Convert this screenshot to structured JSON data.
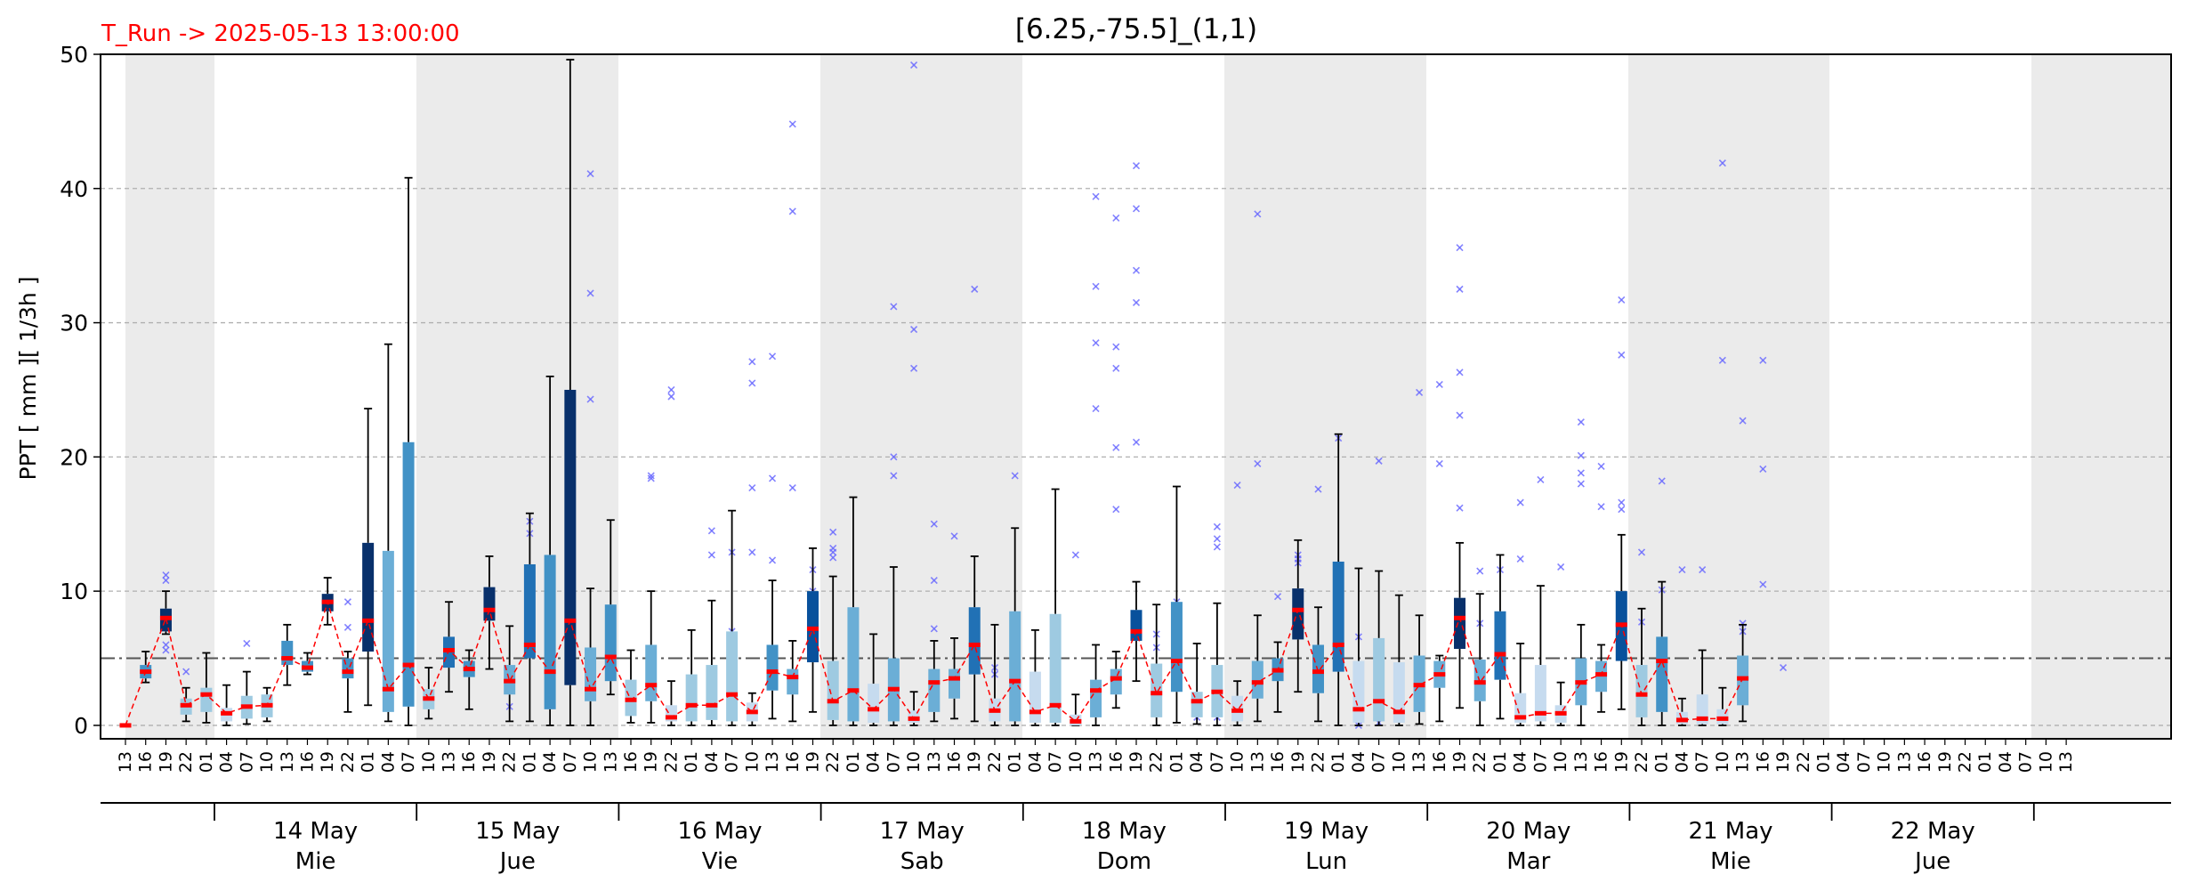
{
  "header": {
    "run_label": "T_Run -> 2025-05-13  13:00:00",
    "title": "[6.25,-75.5]_(1,1)",
    "run_color": "#ff0000"
  },
  "chart_data": {
    "type": "box",
    "ylabel": "PPT  [ mm ][ 1/3h ]",
    "ylim": [
      -1,
      50
    ],
    "yticks": [
      0,
      10,
      20,
      30,
      40,
      50
    ],
    "grid": true,
    "threshold": 5,
    "x_hours": [
      "13",
      "16",
      "19",
      "22",
      "01",
      "04",
      "07",
      "10",
      "13",
      "16",
      "19",
      "22",
      "01",
      "04",
      "07",
      "10",
      "13",
      "16",
      "19",
      "22",
      "01",
      "04",
      "07",
      "10",
      "13",
      "16",
      "19",
      "22",
      "01",
      "04",
      "07",
      "10",
      "13",
      "16",
      "19",
      "22",
      "01",
      "04",
      "07",
      "10",
      "13",
      "16",
      "19",
      "22",
      "01",
      "04",
      "07",
      "10",
      "13",
      "16",
      "19",
      "22",
      "01",
      "04",
      "07",
      "10",
      "13",
      "16",
      "19",
      "22",
      "01",
      "04",
      "07",
      "10",
      "13",
      "16",
      "19",
      "22",
      "01",
      "04",
      "07",
      "10",
      "13",
      "16",
      "19",
      "22",
      "01",
      "04",
      "07",
      "10",
      "13",
      "16",
      "19",
      "22",
      "01",
      "04",
      "07",
      "10",
      "13",
      "16",
      "19",
      "22",
      "01",
      "04",
      "07",
      "10",
      "13"
    ],
    "day_labels": [
      {
        "date": "14 May",
        "weekday": "Mie"
      },
      {
        "date": "15 May",
        "weekday": "Jue"
      },
      {
        "date": "16 May",
        "weekday": "Vie"
      },
      {
        "date": "17 May",
        "weekday": "Sab"
      },
      {
        "date": "18 May",
        "weekday": "Dom"
      },
      {
        "date": "19 May",
        "weekday": "Lun"
      },
      {
        "date": "20 May",
        "weekday": "Mar"
      },
      {
        "date": "21 May",
        "weekday": "Mie"
      },
      {
        "date": "22 May",
        "weekday": "Jue"
      }
    ],
    "median_series": [
      0,
      4,
      8,
      1.5,
      2.3,
      0.9,
      1.4,
      1.5,
      5,
      4.3,
      9.2,
      4,
      7.8,
      2.7,
      4.5,
      2,
      5.6,
      4.2,
      8.6,
      3.3,
      6,
      4,
      7.8,
      2.7,
      5.1,
      1.9,
      3,
      0.6,
      1.5,
      1.5,
      2.3,
      1,
      4,
      3.6,
      7.2,
      1.8,
      2.6,
      1.2,
      2.7,
      0.5,
      3.2,
      3.5,
      6,
      1.1,
      3.3,
      1,
      1.5,
      0.3,
      2.6,
      3.5,
      7,
      2.4,
      4.8,
      1.8,
      2.5,
      1.1,
      3.2,
      4.1,
      8.6,
      4,
      6,
      1.2,
      1.8,
      1,
      3,
      3.8,
      8,
      3.2,
      5.3,
      0.6,
      0.9,
      0.9,
      3.2,
      3.8,
      7.5,
      2.3,
      4.8,
      0.4,
      0.5,
      0.5,
      3.5
    ],
    "boxes": [
      {
        "q1": 0,
        "q3": 0,
        "lo": 0,
        "hi": 0,
        "med": 0
      },
      {
        "q1": 3.5,
        "q3": 4.5,
        "lo": 3.2,
        "hi": 5.5,
        "med": 4
      },
      {
        "q1": 7,
        "q3": 8.7,
        "lo": 6.8,
        "hi": 10,
        "med": 8
      },
      {
        "q1": 0.8,
        "q3": 2,
        "lo": 0.3,
        "hi": 2.8,
        "med": 1.5
      },
      {
        "q1": 1,
        "q3": 2.8,
        "lo": 0.2,
        "hi": 5.4,
        "med": 2.3
      },
      {
        "q1": 0.3,
        "q3": 1.3,
        "lo": 0,
        "hi": 3,
        "med": 0.9
      },
      {
        "q1": 0.5,
        "q3": 2.2,
        "lo": 0.1,
        "hi": 4,
        "med": 1.4
      },
      {
        "q1": 0.6,
        "q3": 2.3,
        "lo": 0.3,
        "hi": 2.8,
        "med": 1.5
      },
      {
        "q1": 4.5,
        "q3": 6.3,
        "lo": 3,
        "hi": 7.5,
        "med": 5
      },
      {
        "q1": 4,
        "q3": 4.8,
        "lo": 3.8,
        "hi": 5.4,
        "med": 4.3
      },
      {
        "q1": 8.5,
        "q3": 9.8,
        "lo": 7.5,
        "hi": 11,
        "med": 9.2
      },
      {
        "q1": 3.5,
        "q3": 5,
        "lo": 1,
        "hi": 5.5,
        "med": 4
      },
      {
        "q1": 5.5,
        "q3": 13.6,
        "lo": 1.5,
        "hi": 23.6,
        "med": 7.8
      },
      {
        "q1": 1,
        "q3": 13,
        "lo": 0.3,
        "hi": 28.4,
        "med": 2.7
      },
      {
        "q1": 1.4,
        "q3": 21.1,
        "lo": 0,
        "hi": 40.8,
        "med": 4.5
      },
      {
        "q1": 1.2,
        "q3": 2.7,
        "lo": 0.5,
        "hi": 4.3,
        "med": 2
      },
      {
        "q1": 4.3,
        "q3": 6.6,
        "lo": 2.5,
        "hi": 9.2,
        "med": 5.6
      },
      {
        "q1": 3.6,
        "q3": 4.8,
        "lo": 1.2,
        "hi": 5.6,
        "med": 4.2
      },
      {
        "q1": 7.8,
        "q3": 10.3,
        "lo": 4.2,
        "hi": 12.6,
        "med": 8.6
      },
      {
        "q1": 2.3,
        "q3": 4.5,
        "lo": 0.3,
        "hi": 7.4,
        "med": 3.3
      },
      {
        "q1": 5,
        "q3": 12,
        "lo": 0.3,
        "hi": 15.8,
        "med": 6
      },
      {
        "q1": 1.2,
        "q3": 12.7,
        "lo": 0,
        "hi": 26,
        "med": 4
      },
      {
        "q1": 3,
        "q3": 25,
        "lo": 0,
        "hi": 49.6,
        "med": 7.8
      },
      {
        "q1": 1.8,
        "q3": 5.8,
        "lo": 0,
        "hi": 10.2,
        "med": 2.7
      },
      {
        "q1": 3.3,
        "q3": 9,
        "lo": 2.3,
        "hi": 15.3,
        "med": 5.1
      },
      {
        "q1": 0.7,
        "q3": 3.4,
        "lo": 0.2,
        "hi": 5.6,
        "med": 1.9
      },
      {
        "q1": 1.8,
        "q3": 6,
        "lo": 0.2,
        "hi": 10,
        "med": 3
      },
      {
        "q1": 0.3,
        "q3": 1.5,
        "lo": 0,
        "hi": 3.3,
        "med": 0.6
      },
      {
        "q1": 0.3,
        "q3": 3.8,
        "lo": 0,
        "hi": 7.1,
        "med": 1.5
      },
      {
        "q1": 0.4,
        "q3": 4.5,
        "lo": 0,
        "hi": 9.3,
        "med": 1.5
      },
      {
        "q1": 0.3,
        "q3": 7,
        "lo": 0,
        "hi": 16,
        "med": 2.3
      },
      {
        "q1": 0.3,
        "q3": 1.7,
        "lo": 0,
        "hi": 2.4,
        "med": 1
      },
      {
        "q1": 2.6,
        "q3": 6,
        "lo": 0.5,
        "hi": 10.8,
        "med": 4
      },
      {
        "q1": 2.3,
        "q3": 4.2,
        "lo": 0.3,
        "hi": 6.3,
        "med": 3.6
      },
      {
        "q1": 4.7,
        "q3": 10,
        "lo": 1,
        "hi": 13.2,
        "med": 7.2
      },
      {
        "q1": 0.4,
        "q3": 4.8,
        "lo": 0,
        "hi": 11.1,
        "med": 1.8
      },
      {
        "q1": 0.3,
        "q3": 8.8,
        "lo": 0,
        "hi": 17,
        "med": 2.6
      },
      {
        "q1": 0.2,
        "q3": 3.1,
        "lo": 0,
        "hi": 6.8,
        "med": 1.2
      },
      {
        "q1": 0.3,
        "q3": 5,
        "lo": 0,
        "hi": 11.8,
        "med": 2.7
      },
      {
        "q1": 0.2,
        "q3": 1.1,
        "lo": 0,
        "hi": 2.5,
        "med": 0.5
      },
      {
        "q1": 1,
        "q3": 4.2,
        "lo": 0.3,
        "hi": 6.3,
        "med": 3.2
      },
      {
        "q1": 2,
        "q3": 4.2,
        "lo": 0.5,
        "hi": 6.5,
        "med": 3.5
      },
      {
        "q1": 3.8,
        "q3": 8.8,
        "lo": 0.3,
        "hi": 12.6,
        "med": 6
      },
      {
        "q1": 0.3,
        "q3": 2,
        "lo": 0,
        "hi": 7.5,
        "med": 1.1
      },
      {
        "q1": 0.3,
        "q3": 8.5,
        "lo": 0,
        "hi": 14.7,
        "med": 3.3
      },
      {
        "q1": 0.2,
        "q3": 4,
        "lo": 0,
        "hi": 7.1,
        "med": 1
      },
      {
        "q1": 0.2,
        "q3": 8.3,
        "lo": 0,
        "hi": 17.6,
        "med": 1.5
      },
      {
        "q1": 0,
        "q3": 0.8,
        "lo": 0,
        "hi": 2.3,
        "med": 0.3
      },
      {
        "q1": 0.6,
        "q3": 3.4,
        "lo": 0,
        "hi": 6,
        "med": 2.6
      },
      {
        "q1": 2.3,
        "q3": 4.2,
        "lo": 1.3,
        "hi": 5.5,
        "med": 3.5
      },
      {
        "q1": 6.3,
        "q3": 8.6,
        "lo": 3.3,
        "hi": 10.7,
        "med": 7
      },
      {
        "q1": 0.6,
        "q3": 4.6,
        "lo": 0,
        "hi": 9,
        "med": 2.4
      },
      {
        "q1": 2.5,
        "q3": 9.2,
        "lo": 0.2,
        "hi": 17.8,
        "med": 4.8
      },
      {
        "q1": 0.6,
        "q3": 2.5,
        "lo": 0.1,
        "hi": 6.1,
        "med": 1.8
      },
      {
        "q1": 0.6,
        "q3": 4.5,
        "lo": 0,
        "hi": 9.1,
        "med": 2.5
      },
      {
        "q1": 0.3,
        "q3": 2.2,
        "lo": 0,
        "hi": 3.3,
        "med": 1.1
      },
      {
        "q1": 2,
        "q3": 4.8,
        "lo": 0.3,
        "hi": 8.2,
        "med": 3.2
      },
      {
        "q1": 3.3,
        "q3": 5,
        "lo": 1,
        "hi": 6.2,
        "med": 4.1
      },
      {
        "q1": 6.4,
        "q3": 10.2,
        "lo": 2.5,
        "hi": 13.8,
        "med": 8.6
      },
      {
        "q1": 2.4,
        "q3": 6,
        "lo": 0.3,
        "hi": 8.8,
        "med": 4
      },
      {
        "q1": 4,
        "q3": 12.2,
        "lo": 0,
        "hi": 21.7,
        "med": 6
      },
      {
        "q1": 0.2,
        "q3": 4.8,
        "lo": 0,
        "hi": 11.7,
        "med": 1.2
      },
      {
        "q1": 0.3,
        "q3": 6.5,
        "lo": 0,
        "hi": 11.5,
        "med": 1.8
      },
      {
        "q1": 0.2,
        "q3": 4.7,
        "lo": 0,
        "hi": 9.7,
        "med": 1
      },
      {
        "q1": 1,
        "q3": 5.2,
        "lo": 0.1,
        "hi": 8.2,
        "med": 3
      },
      {
        "q1": 2.8,
        "q3": 4.8,
        "lo": 0.3,
        "hi": 5.2,
        "med": 3.8
      },
      {
        "q1": 5.7,
        "q3": 9.5,
        "lo": 1.3,
        "hi": 13.6,
        "med": 8
      },
      {
        "q1": 1.8,
        "q3": 4.9,
        "lo": 0,
        "hi": 9.8,
        "med": 3.2
      },
      {
        "q1": 3.4,
        "q3": 8.5,
        "lo": 0.5,
        "hi": 12.7,
        "med": 5.3
      },
      {
        "q1": 0.2,
        "q3": 2.4,
        "lo": 0,
        "hi": 6.1,
        "med": 0.6
      },
      {
        "q1": 0.3,
        "q3": 4.5,
        "lo": 0,
        "hi": 10.4,
        "med": 0.9
      },
      {
        "q1": 0.2,
        "q3": 1.5,
        "lo": 0,
        "hi": 3.2,
        "med": 0.9
      },
      {
        "q1": 1.5,
        "q3": 5,
        "lo": 0,
        "hi": 7.5,
        "med": 3.2
      },
      {
        "q1": 2.5,
        "q3": 4.8,
        "lo": 1,
        "hi": 6,
        "med": 3.8
      },
      {
        "q1": 4.8,
        "q3": 10,
        "lo": 1.2,
        "hi": 14.2,
        "med": 7.5
      },
      {
        "q1": 0.6,
        "q3": 4.5,
        "lo": 0,
        "hi": 8.7,
        "med": 2.3
      },
      {
        "q1": 1,
        "q3": 6.6,
        "lo": 0,
        "hi": 10.7,
        "med": 4.8
      },
      {
        "q1": 0.1,
        "q3": 1,
        "lo": 0,
        "hi": 2,
        "med": 0.4
      },
      {
        "q1": 0.1,
        "q3": 2.3,
        "lo": 0,
        "hi": 5.6,
        "med": 0.5
      },
      {
        "q1": 0.1,
        "q3": 1.2,
        "lo": 0,
        "hi": 2.8,
        "med": 0.5
      },
      {
        "q1": 1.5,
        "q3": 5.2,
        "lo": 0.3,
        "hi": 7.5,
        "med": 3.5
      }
    ],
    "outliers": [
      [
        2,
        5.6
      ],
      [
        2,
        6
      ],
      [
        2,
        10.8
      ],
      [
        2,
        11.2
      ],
      [
        3,
        4
      ],
      [
        6,
        6.1
      ],
      [
        11,
        7.3
      ],
      [
        11,
        9.2
      ],
      [
        19,
        1.4
      ],
      [
        19,
        3.2
      ],
      [
        20,
        14.3
      ],
      [
        20,
        15.2
      ],
      [
        23,
        41.1
      ],
      [
        23,
        32.2
      ],
      [
        23,
        24.3
      ],
      [
        26,
        18.6
      ],
      [
        26,
        18.4
      ],
      [
        27,
        25
      ],
      [
        27,
        24.5
      ],
      [
        29,
        14.5
      ],
      [
        29,
        12.7
      ],
      [
        30,
        12.9
      ],
      [
        30,
        5.5
      ],
      [
        30,
        3.9
      ],
      [
        30,
        7
      ],
      [
        31,
        27.1
      ],
      [
        31,
        25.5
      ],
      [
        31,
        17.7
      ],
      [
        31,
        12.9
      ],
      [
        32,
        27.5
      ],
      [
        32,
        18.4
      ],
      [
        32,
        12.3
      ],
      [
        33,
        44.8
      ],
      [
        33,
        38.3
      ],
      [
        33,
        17.7
      ],
      [
        34,
        11.6
      ],
      [
        34,
        10
      ],
      [
        34,
        8.9
      ],
      [
        34,
        7.5
      ],
      [
        34,
        5.2
      ],
      [
        35,
        14.4
      ],
      [
        35,
        13.2
      ],
      [
        35,
        12.9
      ],
      [
        35,
        12.5
      ],
      [
        38,
        31.2
      ],
      [
        38,
        20
      ],
      [
        38,
        18.6
      ],
      [
        39,
        49.2
      ],
      [
        39,
        29.5
      ],
      [
        39,
        26.6
      ],
      [
        40,
        15
      ],
      [
        40,
        10.8
      ],
      [
        40,
        7.2
      ],
      [
        41,
        14.1
      ],
      [
        42,
        32.5
      ],
      [
        43,
        4.3
      ],
      [
        43,
        3.8
      ],
      [
        44,
        18.6
      ],
      [
        47,
        12.7
      ],
      [
        48,
        39.4
      ],
      [
        48,
        32.7
      ],
      [
        48,
        28.5
      ],
      [
        48,
        23.6
      ],
      [
        49,
        37.8
      ],
      [
        49,
        28.2
      ],
      [
        49,
        26.6
      ],
      [
        49,
        20.7
      ],
      [
        49,
        16.1
      ],
      [
        50,
        41.7
      ],
      [
        50,
        38.5
      ],
      [
        50,
        33.9
      ],
      [
        50,
        31.5
      ],
      [
        50,
        21.1
      ],
      [
        51,
        6.8
      ],
      [
        51,
        5.8
      ],
      [
        52,
        9.2
      ],
      [
        52,
        8.2
      ],
      [
        52,
        7.6
      ],
      [
        53,
        1.2
      ],
      [
        53,
        0.6
      ],
      [
        54,
        14.8
      ],
      [
        54,
        13.9
      ],
      [
        54,
        13.3
      ],
      [
        54,
        0.6
      ],
      [
        55,
        17.9
      ],
      [
        56,
        38.1
      ],
      [
        56,
        19.5
      ],
      [
        57,
        9.6
      ],
      [
        58,
        12.7
      ],
      [
        58,
        12.4
      ],
      [
        58,
        12.1
      ],
      [
        59,
        17.6
      ],
      [
        59,
        4.3
      ],
      [
        60,
        21.4
      ],
      [
        61,
        6.6
      ],
      [
        61,
        1.8
      ],
      [
        61,
        1
      ],
      [
        61,
        0.6
      ],
      [
        61,
        0
      ],
      [
        62,
        19.7
      ],
      [
        62,
        0.2
      ],
      [
        64,
        24.8
      ],
      [
        65,
        25.4
      ],
      [
        65,
        19.5
      ],
      [
        66,
        35.6
      ],
      [
        66,
        32.5
      ],
      [
        66,
        26.3
      ],
      [
        66,
        23.1
      ],
      [
        66,
        16.2
      ],
      [
        67,
        11.5
      ],
      [
        67,
        7.6
      ],
      [
        68,
        11.6
      ],
      [
        69,
        16.6
      ],
      [
        69,
        12.4
      ],
      [
        70,
        18.3
      ],
      [
        71,
        11.8
      ],
      [
        72,
        22.6
      ],
      [
        72,
        20.1
      ],
      [
        72,
        18.8
      ],
      [
        72,
        18
      ],
      [
        73,
        19.3
      ],
      [
        73,
        16.3
      ],
      [
        74,
        31.7
      ],
      [
        74,
        27.6
      ],
      [
        74,
        16.6
      ],
      [
        74,
        16.1
      ],
      [
        75,
        12.9
      ],
      [
        75,
        7.7
      ],
      [
        76,
        18.2
      ],
      [
        76,
        10.1
      ],
      [
        77,
        11.6
      ],
      [
        78,
        11.6
      ],
      [
        79,
        41.9
      ],
      [
        79,
        27.2
      ],
      [
        80,
        22.7
      ],
      [
        80,
        7.6
      ],
      [
        80,
        7
      ],
      [
        81,
        27.2
      ],
      [
        81,
        19.1
      ],
      [
        81,
        10.5
      ],
      [
        82,
        4.3
      ]
    ],
    "colors": {
      "shade": "#ebebeb",
      "median_line": "#ff0000",
      "threshold_line": "#555555",
      "outlier": "#6666ff",
      "whisker": "#000000",
      "box_palette": [
        "#c6dbef",
        "#9ecae1",
        "#6baed6",
        "#4292c6",
        "#2171b5",
        "#08519c",
        "#08306b"
      ]
    }
  }
}
